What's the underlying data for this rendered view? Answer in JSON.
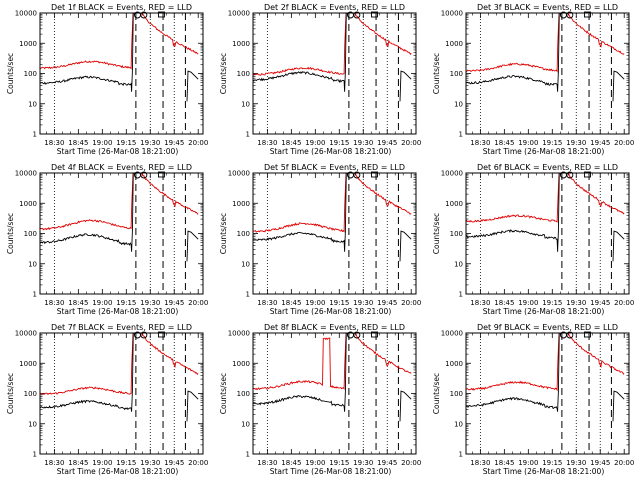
{
  "chart_data": {
    "type": "line",
    "x_ticks": [
      "18:30",
      "18:45",
      "19:00",
      "19:15",
      "19:30",
      "19:45",
      "20:00"
    ],
    "xlabel": "Start Time (26-Mar-08 18:21:00)",
    "ylabel": "Counts/sec",
    "y_ticks": [
      "1",
      "10",
      "100",
      "1000",
      "10000"
    ],
    "y_scale": "log",
    "ylim": [
      1,
      10000
    ],
    "xlim": [
      "18:21",
      "20:03"
    ],
    "series_colors": {
      "events": "#000000",
      "lld": "#e00000"
    },
    "markers": {
      "dotted": [
        "18:30",
        "19:30",
        "19:45"
      ],
      "dashed": [
        "19:21",
        "19:38",
        "19:52"
      ]
    },
    "panels": [
      {
        "title": "Det 1f BLACK = Events, RED = LLD",
        "events_base": 48,
        "events_bump": 28,
        "lld_base": 150,
        "lld_bump": 100,
        "gap": null
      },
      {
        "title": "Det 2f BLACK = Events, RED = LLD",
        "events_base": 62,
        "events_bump": 45,
        "lld_base": 92,
        "lld_bump": 60,
        "gap": null
      },
      {
        "title": "Det 3f BLACK = Events, RED = LLD",
        "events_base": 48,
        "events_bump": 32,
        "lld_base": 120,
        "lld_bump": 85,
        "gap": null
      },
      {
        "title": "Det 4f BLACK = Events, RED = LLD",
        "events_base": 50,
        "events_bump": 42,
        "lld_base": 140,
        "lld_bump": 130,
        "gap": null
      },
      {
        "title": "Det 5f BLACK = Events, RED = LLD",
        "events_base": 60,
        "events_bump": 42,
        "lld_base": 115,
        "lld_bump": 100,
        "gap": null
      },
      {
        "title": "Det 6f BLACK = Events, RED = LLD",
        "events_base": 78,
        "events_bump": 45,
        "lld_base": 250,
        "lld_bump": 140,
        "gap": null
      },
      {
        "title": "Det 7f BLACK = Events, RED = LLD",
        "events_base": 35,
        "events_bump": 20,
        "lld_base": 95,
        "lld_bump": 60,
        "gap": null
      },
      {
        "title": "Det 8f BLACK = Events, RED = LLD",
        "events_base": 45,
        "events_bump": 35,
        "lld_base": 140,
        "lld_bump": 110,
        "gap": [
          "19:05",
          "19:09"
        ]
      },
      {
        "title": "Det 9f BLACK = Events, RED = LLD",
        "events_base": 38,
        "events_bump": 30,
        "lld_base": 135,
        "lld_bump": 100,
        "gap": null
      }
    ]
  }
}
